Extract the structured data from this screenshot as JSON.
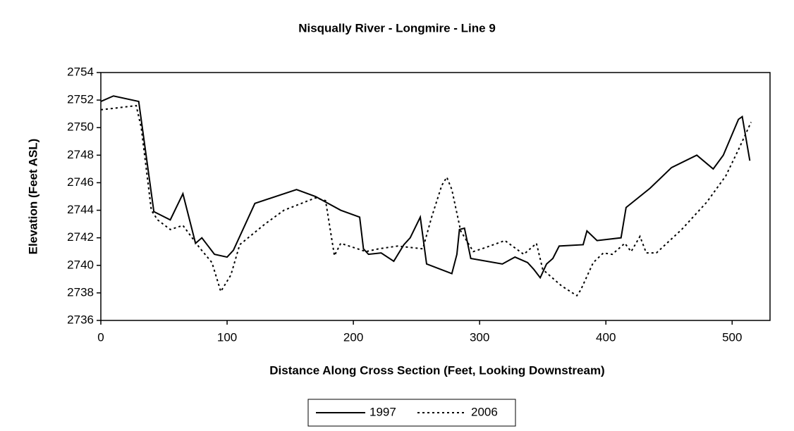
{
  "chart_data": {
    "type": "line",
    "title": "Nisqually River - Longmire - Line 9",
    "x_label": "Distance Along Cross Section (Feet, Looking Downstream)",
    "y_label": "Elevation (Feet ASL)",
    "xlim": [
      0,
      530
    ],
    "xticks": [
      0,
      100,
      200,
      300,
      400,
      500
    ],
    "ylim": [
      2736,
      2754
    ],
    "yticks": [
      2736,
      2738,
      2740,
      2742,
      2744,
      2746,
      2748,
      2750,
      2752,
      2754
    ],
    "legend": "bottom",
    "series": [
      {
        "name": "1997",
        "color": "#000000",
        "style": "solid",
        "x": [
          0,
          10,
          30,
          42,
          55,
          65,
          75,
          80,
          90,
          100,
          105,
          122,
          155,
          170,
          190,
          205,
          208,
          212,
          222,
          232,
          240,
          245,
          253,
          258,
          278,
          282,
          284,
          288,
          293,
          318,
          328,
          338,
          343,
          348,
          353,
          358,
          363,
          382,
          385,
          393,
          412,
          416,
          435,
          452,
          472,
          485,
          493,
          505,
          508,
          514
        ],
        "values": [
          2751.9,
          2752.3,
          2751.9,
          2743.9,
          2743.3,
          2745.2,
          2741.6,
          2742,
          2740.8,
          2740.6,
          2741.1,
          2744.5,
          2745.5,
          2745,
          2744,
          2743.5,
          2741.2,
          2740.8,
          2740.9,
          2740.3,
          2741.5,
          2742,
          2743.5,
          2740.1,
          2739.4,
          2740.8,
          2742.6,
          2742.7,
          2740.5,
          2740.1,
          2740.6,
          2740.2,
          2739.7,
          2739.1,
          2740.1,
          2740.5,
          2741.4,
          2741.5,
          2742.5,
          2741.8,
          2742,
          2744.2,
          2745.6,
          2747.1,
          2748,
          2747,
          2748,
          2750.6,
          2750.8,
          2747.6
        ]
      },
      {
        "name": "2006",
        "color": "#000000",
        "style": "dotted",
        "x": [
          0,
          10,
          28,
          32,
          40,
          45,
          55,
          65,
          78,
          88,
          95,
          103,
          110,
          130,
          145,
          170,
          178,
          185,
          190,
          200,
          210,
          220,
          235,
          255,
          262,
          270,
          274,
          278,
          285,
          295,
          305,
          320,
          335,
          345,
          350,
          365,
          377,
          380,
          390,
          398,
          405,
          415,
          420,
          427,
          432,
          440,
          460,
          480,
          495,
          505,
          515
        ],
        "values": [
          2751.3,
          2751.4,
          2751.6,
          2750,
          2744,
          2743.3,
          2742.6,
          2742.9,
          2741.3,
          2740.2,
          2738.1,
          2739.3,
          2741.5,
          2743,
          2744,
          2744.9,
          2744.7,
          2740.7,
          2741.6,
          2741.3,
          2741,
          2741.2,
          2741.4,
          2741.2,
          2743.5,
          2745.8,
          2746.4,
          2745.5,
          2742.5,
          2741,
          2741.3,
          2741.8,
          2740.8,
          2741.6,
          2739.7,
          2738.5,
          2737.8,
          2738.2,
          2740.2,
          2740.9,
          2740.8,
          2741.6,
          2741,
          2742.1,
          2740.9,
          2740.9,
          2742.6,
          2744.6,
          2746.5,
          2748.4,
          2750.4
        ]
      }
    ]
  }
}
